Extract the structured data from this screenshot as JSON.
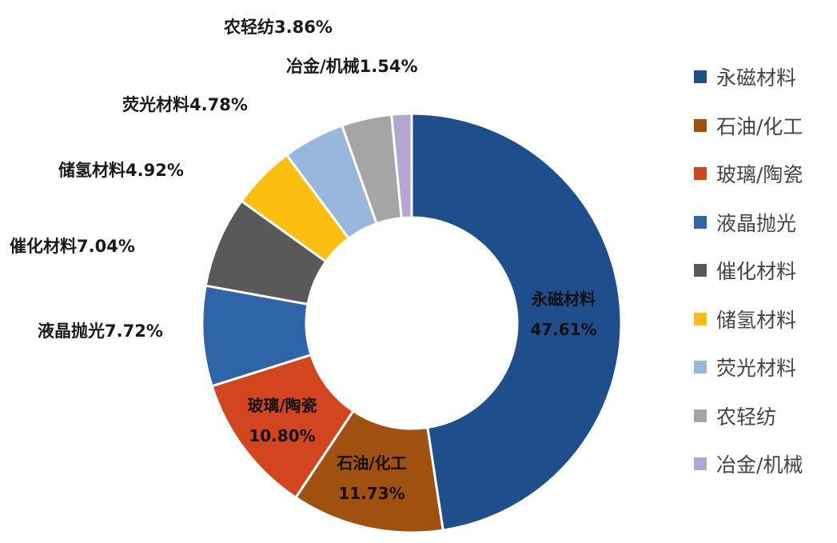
{
  "chart_data": {
    "type": "pie",
    "variant": "donut",
    "title": "",
    "categories": [
      "永磁材料",
      "石油/化工",
      "玻璃/陶瓷",
      "液晶抛光",
      "催化材料",
      "储氢材料",
      "荧光材料",
      "农轻纺",
      "冶金/机械"
    ],
    "values": [
      47.61,
      11.73,
      10.8,
      7.72,
      7.04,
      4.92,
      4.78,
      3.86,
      1.54
    ],
    "unit": "%",
    "colors": [
      "#1f4e8c",
      "#a0500f",
      "#d2451e",
      "#2e65a8",
      "#595959",
      "#fdbf0f",
      "#97b7dd",
      "#a5a5a5",
      "#b3a6d0"
    ],
    "start_angle_deg": 0,
    "direction": "clockwise",
    "legend_position": "right",
    "data_labels": [
      {
        "text": "永磁材料",
        "value": "47.61%",
        "placement": "inside"
      },
      {
        "text": "石油/化工",
        "value": "11.73%",
        "placement": "inside"
      },
      {
        "text": "玻璃/陶瓷",
        "value": "10.80%",
        "placement": "inside"
      },
      {
        "text": "液晶抛光7.72%",
        "placement": "outside"
      },
      {
        "text": "催化材料7.04%",
        "placement": "outside"
      },
      {
        "text": "储氢材料4.92%",
        "placement": "outside"
      },
      {
        "text": "荧光材料4.78%",
        "placement": "outside"
      },
      {
        "text": "农轻纺3.86%",
        "placement": "outside"
      },
      {
        "text": "冶金/机械1.54%",
        "placement": "outside"
      }
    ]
  },
  "labels": {
    "inside": [
      {
        "name": "永磁材料",
        "value": "47.61%"
      },
      {
        "name": "石油/化工",
        "value": "11.73%"
      },
      {
        "name": "玻璃/陶瓷",
        "value": "10.80%"
      }
    ],
    "outside": [
      "液晶抛光7.72%",
      "催化材料7.04%",
      "储氢材料4.92%",
      "荧光材料4.78%",
      "农轻纺3.86%",
      "冶金/机械1.54%"
    ]
  },
  "legend": {
    "items": [
      {
        "label": "永磁材料",
        "color": "#1f4e8c"
      },
      {
        "label": "石油/化工",
        "color": "#a0500f"
      },
      {
        "label": "玻璃/陶瓷",
        "color": "#d2451e"
      },
      {
        "label": "液晶抛光",
        "color": "#2e65a8"
      },
      {
        "label": "催化材料",
        "color": "#595959"
      },
      {
        "label": "储氢材料",
        "color": "#fdbf0f"
      },
      {
        "label": "荧光材料",
        "color": "#97b7dd"
      },
      {
        "label": "农轻纺",
        "color": "#a5a5a5"
      },
      {
        "label": "冶金/机械",
        "color": "#b3a6d0"
      }
    ]
  }
}
